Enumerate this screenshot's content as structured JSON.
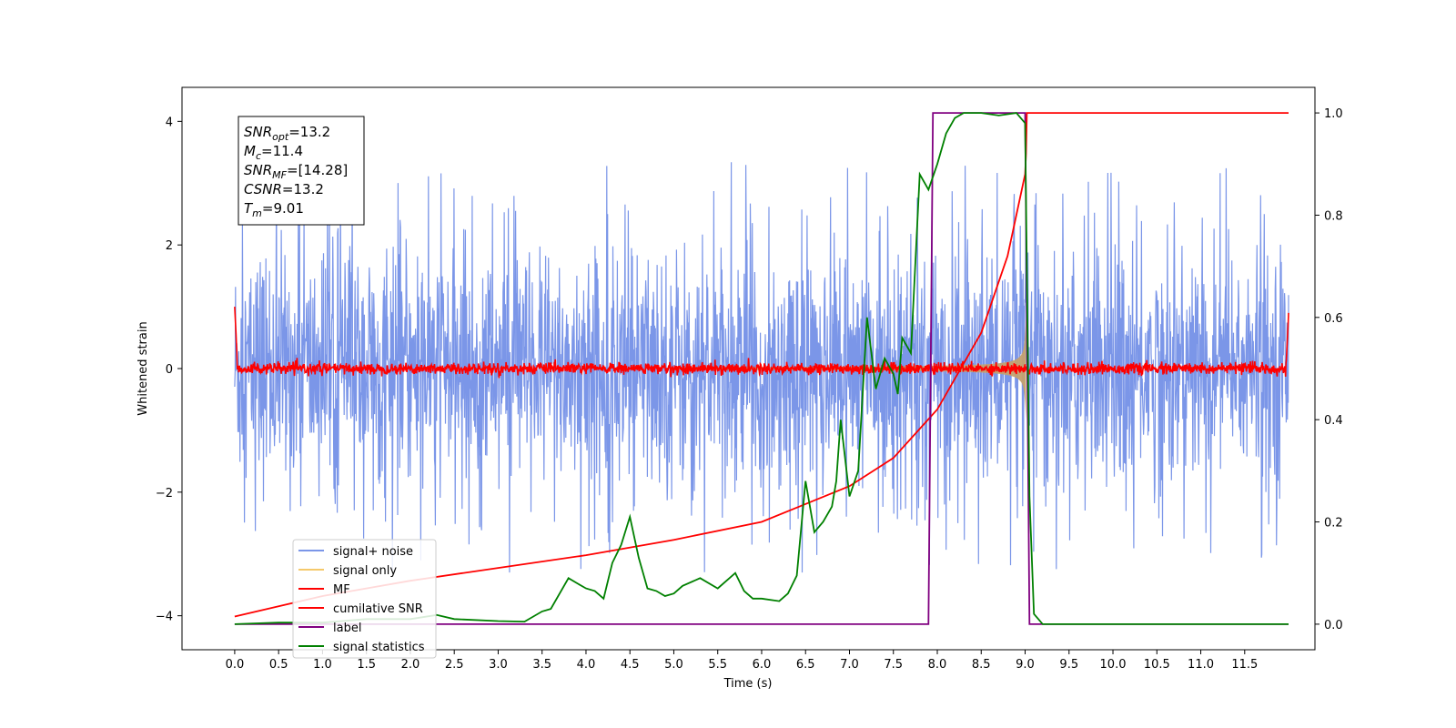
{
  "chart_data": {
    "type": "line",
    "title": "",
    "xlabel": "Time (s)",
    "ylabel": "Whitened strain",
    "xlim": [
      -0.6,
      12.3
    ],
    "ylim": [
      -4.55,
      4.55
    ],
    "y2lim": [
      -0.05,
      1.05
    ],
    "grid": false,
    "legend_position": "lower-left",
    "x_ticks": [
      "0.0",
      "0.5",
      "1.0",
      "1.5",
      "2.0",
      "2.5",
      "3.0",
      "3.5",
      "4.0",
      "4.5",
      "5.0",
      "5.5",
      "6.0",
      "6.5",
      "7.0",
      "7.5",
      "8.0",
      "8.5",
      "9.0",
      "9.5",
      "10.0",
      "10.5",
      "11.0",
      "11.5"
    ],
    "y_ticks": [
      "4",
      "2",
      "0",
      "−2",
      "−4"
    ],
    "y2_ticks": [
      "1.0",
      "0.8",
      "0.6",
      "0.4",
      "0.2",
      "0.0"
    ],
    "annotation": {
      "lines": [
        {
          "sym": "SNR",
          "sub": "opt",
          "val": "=13.2"
        },
        {
          "sym": "M",
          "sub": "c",
          "val": "=11.4"
        },
        {
          "sym": "SNR",
          "sub": "MF",
          "val": "=[14.28]"
        },
        {
          "sym": "CSNR",
          "sub": "",
          "val": "=13.2"
        },
        {
          "sym": "T",
          "sub": "m",
          "val": "=9.01"
        }
      ]
    },
    "series": [
      {
        "name": "signal+ noise",
        "color": "#7b96e8",
        "axis": "left",
        "description_range": [
          -3.3,
          3.8
        ]
      },
      {
        "name": "signal only",
        "color": "#f5c96b",
        "axis": "left",
        "merger_time": 9.01
      },
      {
        "name": "MF",
        "color": "#ff0000",
        "axis": "left"
      },
      {
        "name": "cumilative SNR",
        "color": "#ff0000",
        "axis": "right",
        "x": [
          0.0,
          1.0,
          2.0,
          3.0,
          4.0,
          5.0,
          6.0,
          7.0,
          7.5,
          8.0,
          8.5,
          8.8,
          9.0,
          9.01,
          9.02,
          12.0
        ],
        "values": [
          0.015,
          0.055,
          0.085,
          0.11,
          0.135,
          0.165,
          0.2,
          0.27,
          0.325,
          0.42,
          0.57,
          0.72,
          0.88,
          0.92,
          1.0,
          1.0
        ]
      },
      {
        "name": "label",
        "color": "#800080",
        "axis": "right",
        "x": [
          0.0,
          7.9,
          7.95,
          9.0,
          9.05,
          12.0
        ],
        "values": [
          0.0,
          0.0,
          1.0,
          1.0,
          0.0,
          0.0
        ]
      },
      {
        "name": "signal statistics",
        "color": "#008000",
        "axis": "right",
        "x": [
          0.0,
          0.5,
          1.0,
          1.5,
          2.0,
          2.3,
          2.5,
          3.0,
          3.3,
          3.5,
          3.6,
          3.8,
          3.9,
          4.0,
          4.1,
          4.2,
          4.3,
          4.4,
          4.5,
          4.6,
          4.7,
          4.8,
          4.9,
          5.0,
          5.1,
          5.3,
          5.5,
          5.7,
          5.8,
          5.9,
          6.0,
          6.2,
          6.3,
          6.4,
          6.5,
          6.6,
          6.7,
          6.8,
          6.85,
          6.9,
          7.0,
          7.1,
          7.2,
          7.3,
          7.4,
          7.5,
          7.55,
          7.6,
          7.7,
          7.8,
          7.9,
          8.0,
          8.1,
          8.2,
          8.3,
          8.4,
          8.5,
          8.7,
          8.9,
          9.0,
          9.05,
          9.1,
          9.2,
          12.0
        ],
        "values": [
          0.0,
          0.003,
          0.003,
          0.01,
          0.01,
          0.018,
          0.01,
          0.006,
          0.005,
          0.025,
          0.03,
          0.09,
          0.08,
          0.07,
          0.065,
          0.05,
          0.12,
          0.155,
          0.21,
          0.13,
          0.07,
          0.065,
          0.055,
          0.06,
          0.075,
          0.09,
          0.07,
          0.1,
          0.065,
          0.05,
          0.05,
          0.045,
          0.06,
          0.095,
          0.28,
          0.18,
          0.2,
          0.23,
          0.28,
          0.4,
          0.25,
          0.3,
          0.6,
          0.46,
          0.52,
          0.49,
          0.45,
          0.56,
          0.53,
          0.88,
          0.85,
          0.9,
          0.96,
          0.99,
          1.0,
          1.0,
          1.0,
          0.995,
          1.0,
          0.98,
          0.25,
          0.02,
          0.0,
          0.0
        ]
      }
    ]
  }
}
